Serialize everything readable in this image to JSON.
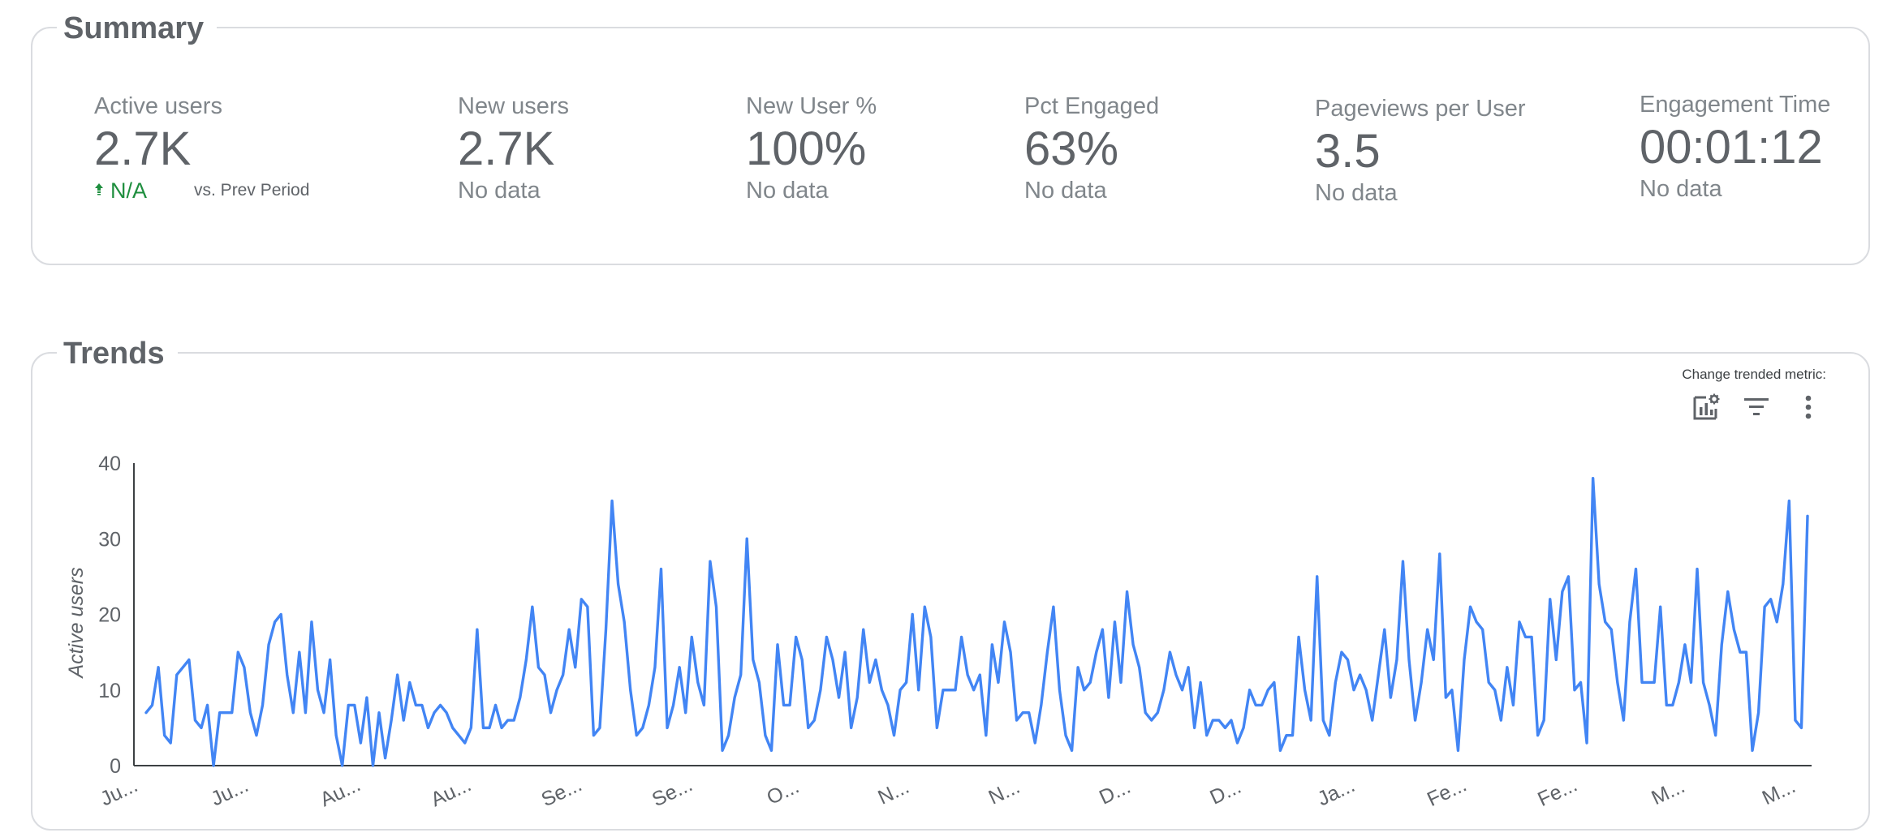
{
  "summary": {
    "title": "Summary",
    "metrics": [
      {
        "label": "Active users",
        "value": "2.7K",
        "delta": "N/A",
        "delta_note": "vs. Prev Period"
      },
      {
        "label": "New users",
        "value": "2.7K",
        "sub": "No data"
      },
      {
        "label": "New User %",
        "value": "100%",
        "sub": "No data"
      },
      {
        "label": "Pct Engaged",
        "value": "63%",
        "sub": "No data"
      },
      {
        "label": "Pageviews per User",
        "value": "3.5",
        "sub": "No data"
      },
      {
        "label": "Engagement Time",
        "value": "00:01:12",
        "sub": "No data"
      }
    ],
    "delta_color": "#1e8e3e"
  },
  "trends": {
    "title": "Trends",
    "toolbar": {
      "caption": "Change trended metric:",
      "icons": [
        "chart-settings-icon",
        "filter-icon",
        "more-vert-icon"
      ]
    }
  },
  "chart_data": {
    "type": "line",
    "ylabel": "Active users",
    "ylim": [
      0,
      40
    ],
    "yticks": [
      0,
      10,
      20,
      30,
      40
    ],
    "xtick_labels": [
      "Ju...",
      "Ju...",
      "Au...",
      "Au...",
      "Se...",
      "Se...",
      "O...",
      "N...",
      "N...",
      "D...",
      "D...",
      "Ja...",
      "Fe...",
      "Fe...",
      "M...",
      "M..."
    ],
    "line_color": "#4285f4",
    "series": [
      {
        "values": [
          7,
          8,
          13,
          4,
          3,
          12,
          13,
          14,
          6,
          5,
          8,
          0,
          7,
          7,
          7,
          15,
          13,
          7,
          4,
          8,
          16,
          19,
          20,
          12,
          7,
          15,
          7,
          19,
          10,
          7,
          14,
          4,
          0,
          8,
          8,
          3,
          9,
          0,
          7,
          1,
          6,
          12,
          6,
          11,
          8,
          8,
          5,
          7,
          8,
          7,
          5,
          4,
          3,
          5,
          18,
          5,
          5,
          8,
          5,
          6,
          6,
          9,
          14,
          21,
          13,
          12,
          7,
          10,
          12,
          18,
          13,
          22,
          21,
          4,
          5,
          18,
          35,
          24,
          19,
          10,
          4,
          5,
          8,
          13,
          26,
          5,
          8,
          13,
          7,
          17,
          11,
          8,
          27,
          21,
          2,
          4,
          9,
          12,
          30,
          14,
          11,
          4,
          2,
          16,
          8,
          8,
          17,
          14,
          5,
          6,
          10,
          17,
          14,
          9,
          15,
          5,
          9,
          18,
          11,
          14,
          10,
          8,
          4,
          10,
          11,
          20,
          10,
          21,
          17,
          5,
          10,
          10,
          10,
          17,
          12,
          10,
          12,
          4,
          16,
          11,
          19,
          15,
          6,
          7,
          7,
          3,
          8,
          15,
          21,
          10,
          4,
          2,
          13,
          10,
          11,
          15,
          18,
          9,
          19,
          11,
          23,
          16,
          13,
          7,
          6,
          7,
          10,
          15,
          12,
          10,
          13,
          5,
          11,
          4,
          6,
          6,
          5,
          6,
          3,
          5,
          10,
          8,
          8,
          10,
          11,
          2,
          4,
          4,
          17,
          10,
          6,
          25,
          6,
          4,
          11,
          15,
          14,
          10,
          12,
          10,
          6,
          12,
          18,
          9,
          14,
          27,
          14,
          6,
          11,
          18,
          14,
          28,
          9,
          10,
          2,
          14,
          21,
          19,
          18,
          11,
          10,
          6,
          13,
          8,
          19,
          17,
          17,
          4,
          6,
          22,
          14,
          23,
          25,
          10,
          11,
          3,
          38,
          24,
          19,
          18,
          11,
          6,
          19,
          26,
          11,
          11,
          11,
          21,
          8,
          8,
          11,
          16,
          11,
          26,
          11,
          8,
          4,
          16,
          23,
          18,
          15,
          15,
          2,
          7,
          21,
          22,
          19,
          24,
          35,
          6,
          5,
          33
        ]
      }
    ]
  }
}
